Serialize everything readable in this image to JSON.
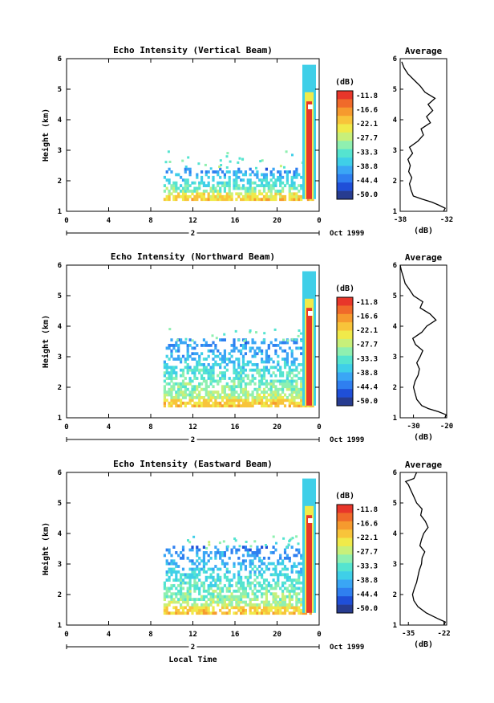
{
  "chart_data": [
    {
      "type": "heatmap",
      "title": "Echo Intensity (Vertical Beam)",
      "ylabel": "Height (km)",
      "xlabel": "",
      "x_ticks": [
        "0",
        "4",
        "8",
        "12",
        "16",
        "20",
        "0"
      ],
      "y_ticks": [
        "1",
        "2",
        "3",
        "4",
        "5",
        "6"
      ],
      "xlim": [
        0,
        24
      ],
      "ylim": [
        1,
        6
      ],
      "date_label": "2",
      "month_label": "Oct 1999",
      "colorbar": {
        "unit": "(dB)",
        "ticks": [
          "-11.8",
          "-16.6",
          "-22.1",
          "-27.7",
          "-33.3",
          "-38.8",
          "-44.4",
          "-50.0"
        ]
      },
      "profile": {
        "title": "Average",
        "xlabel": "(dB)",
        "xlim": [
          -38,
          -32
        ],
        "x_ticks": [
          "-38",
          "-32"
        ],
        "heights": [
          1.0,
          1.1,
          1.2,
          1.3,
          1.4,
          1.5,
          1.7,
          1.9,
          2.1,
          2.3,
          2.5,
          2.7,
          2.9,
          3.1,
          3.3,
          3.5,
          3.7,
          3.9,
          4.1,
          4.3,
          4.5,
          4.7,
          4.9,
          5.1,
          5.3,
          5.5,
          5.7,
          5.9
        ],
        "values": [
          -32.4,
          -32.2,
          -33.0,
          -33.9,
          -35.2,
          -36.3,
          -36.6,
          -36.8,
          -36.5,
          -36.9,
          -36.7,
          -37.0,
          -36.4,
          -36.8,
          -35.7,
          -35.0,
          -35.3,
          -34.1,
          -34.6,
          -33.8,
          -34.4,
          -33.5,
          -34.8,
          -35.4,
          -36.2,
          -37.0,
          -37.5,
          -37.8
        ]
      }
    },
    {
      "type": "heatmap",
      "title": "Echo Intensity (Northward Beam)",
      "ylabel": "Height (km)",
      "xlabel": "",
      "x_ticks": [
        "0",
        "4",
        "8",
        "12",
        "16",
        "20",
        "0"
      ],
      "y_ticks": [
        "1",
        "2",
        "3",
        "4",
        "5",
        "6"
      ],
      "xlim": [
        0,
        24
      ],
      "ylim": [
        1,
        6
      ],
      "date_label": "2",
      "month_label": "Oct 1999",
      "colorbar": {
        "unit": "(dB)",
        "ticks": [
          "-11.8",
          "-16.6",
          "-22.1",
          "-27.7",
          "-33.3",
          "-38.8",
          "-44.4",
          "-50.0"
        ]
      },
      "profile": {
        "title": "Average",
        "xlabel": "(dB)",
        "xlim": [
          -34,
          -20
        ],
        "x_ticks": [
          "-30",
          "-20"
        ],
        "heights": [
          1.0,
          1.1,
          1.2,
          1.3,
          1.4,
          1.6,
          1.8,
          2.0,
          2.2,
          2.4,
          2.6,
          2.8,
          3.0,
          3.2,
          3.4,
          3.6,
          3.8,
          4.0,
          4.2,
          4.4,
          4.6,
          4.8,
          5.0,
          5.2,
          5.4,
          5.6,
          5.8,
          6.0
        ],
        "values": [
          -20.5,
          -20.2,
          -22.5,
          -25.5,
          -27.5,
          -29.0,
          -29.5,
          -30.0,
          -29.5,
          -28.6,
          -28.2,
          -29.0,
          -28.0,
          -27.2,
          -29.4,
          -30.2,
          -27.5,
          -26.0,
          -23.2,
          -25.0,
          -28.0,
          -27.2,
          -30.0,
          -31.2,
          -32.5,
          -33.0,
          -33.6,
          -34.0
        ]
      }
    },
    {
      "type": "heatmap",
      "title": "Echo Intensity (Eastward Beam)",
      "ylabel": "Height (km)",
      "xlabel": "Local Time",
      "x_ticks": [
        "0",
        "4",
        "8",
        "12",
        "16",
        "20",
        "0"
      ],
      "y_ticks": [
        "1",
        "2",
        "3",
        "4",
        "5",
        "6"
      ],
      "xlim": [
        0,
        24
      ],
      "ylim": [
        1,
        6
      ],
      "date_label": "2",
      "month_label": "Oct 1999",
      "colorbar": {
        "unit": "(dB)",
        "ticks": [
          "-11.8",
          "-16.6",
          "-22.1",
          "-27.7",
          "-33.3",
          "-38.8",
          "-44.4",
          "-50.0"
        ]
      },
      "profile": {
        "title": "Average",
        "xlabel": "(dB)",
        "xlim": [
          -38,
          -21
        ],
        "x_ticks": [
          "-35",
          "-22"
        ],
        "heights": [
          1.0,
          1.1,
          1.2,
          1.4,
          1.6,
          1.8,
          2.0,
          2.2,
          2.4,
          2.6,
          2.8,
          3.0,
          3.2,
          3.4,
          3.6,
          3.8,
          4.0,
          4.2,
          4.4,
          4.6,
          4.8,
          5.0,
          5.2,
          5.4,
          5.6,
          5.7,
          5.8,
          6.0
        ],
        "values": [
          -22.0,
          -21.5,
          -24.0,
          -28.5,
          -31.5,
          -33.0,
          -33.5,
          -32.8,
          -32.0,
          -31.5,
          -31.0,
          -30.2,
          -30.0,
          -29.0,
          -30.8,
          -30.2,
          -29.4,
          -27.8,
          -28.8,
          -30.5,
          -30.0,
          -32.0,
          -33.0,
          -34.0,
          -35.0,
          -36.0,
          -33.0,
          -32.0
        ]
      }
    }
  ]
}
